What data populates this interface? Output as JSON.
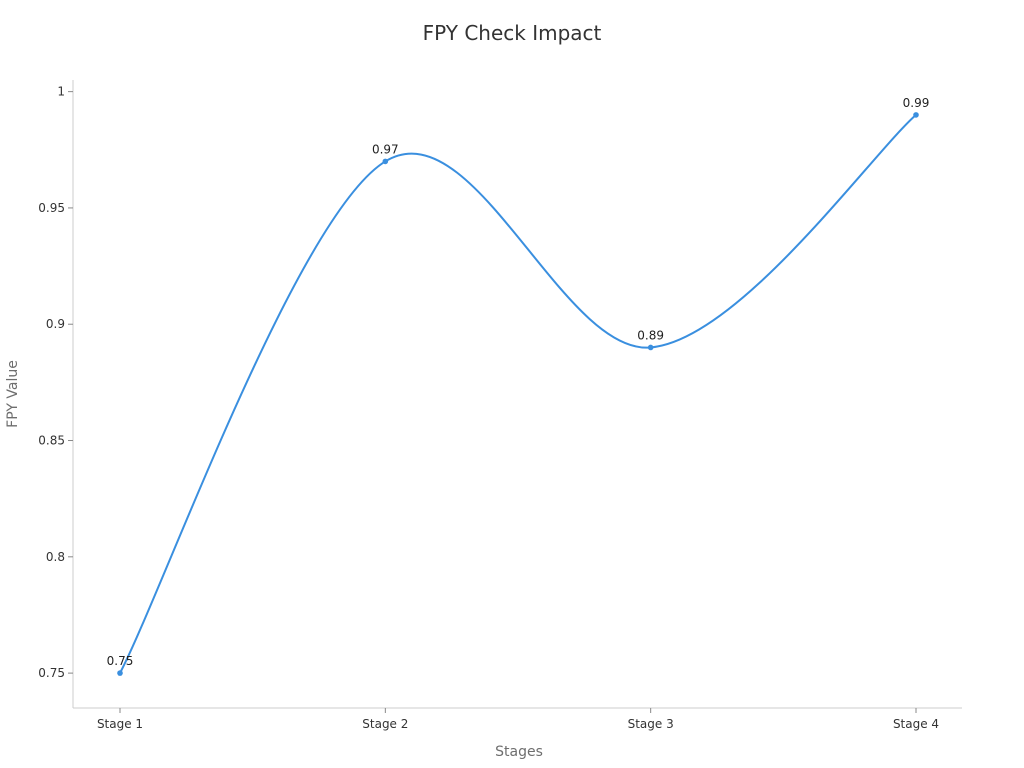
{
  "chart_data": {
    "type": "line",
    "title": "FPY Check Impact",
    "xlabel": "Stages",
    "ylabel": "FPY Value",
    "categories": [
      "Stage 1",
      "Stage 2",
      "Stage 3",
      "Stage 4"
    ],
    "series": [
      {
        "values": [
          0.75,
          0.97,
          0.89,
          0.99
        ],
        "color": "#3a8fdf"
      }
    ],
    "yticks": [
      "0.75",
      "0.8",
      "0.85",
      "0.9",
      "0.95",
      "1"
    ],
    "data_labels": [
      "0.75",
      "0.97",
      "0.89",
      "0.99"
    ],
    "ylim": [
      0.735,
      1.005
    ],
    "grid": false,
    "legend": "none",
    "smooth": true
  }
}
